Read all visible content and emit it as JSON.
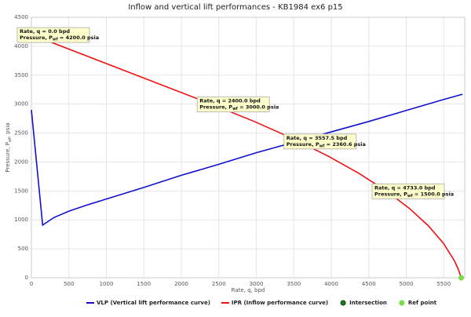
{
  "chart_data": {
    "type": "line",
    "title": "Inflow and vertical lift performances - KB1984 ex6 p15",
    "x_label": "Rate, q, bpd",
    "y_label": [
      "Pressure, P",
      "wf",
      ", psia"
    ],
    "xlim": [
      0,
      5780
    ],
    "ylim": [
      0,
      4500
    ],
    "xticks": [
      0,
      500,
      1000,
      1500,
      2000,
      2500,
      3000,
      3500,
      4000,
      4500,
      5000,
      5500
    ],
    "yticks": [
      0,
      500,
      1000,
      1500,
      2000,
      2500,
      3000,
      3500,
      4000,
      4500
    ],
    "grid": true,
    "series": [
      {
        "name": "VLP (Vertical lift performance curve)",
        "color": "#1010d0",
        "kind": "line",
        "x": [
          0,
          150,
          300,
          500,
          750,
          1000,
          1500,
          2000,
          2500,
          3000,
          3557.5,
          4000,
          4500,
          5000,
          5500,
          5750
        ],
        "values": [
          2900,
          910,
          1040,
          1150,
          1260,
          1360,
          1560,
          1770,
          1960,
          2160,
          2360.6,
          2520,
          2700,
          2890,
          3080,
          3170
        ]
      },
      {
        "name": "IPR (Inflow performance curve)",
        "color": "#ee1111",
        "kind": "line",
        "x": [
          0,
          2400,
          2973.3,
          3493.3,
          3960,
          4373.3,
          4733.3,
          5040,
          5293.3,
          5493.3,
          5640,
          5693.3,
          5733.3
        ],
        "values": [
          4200,
          3000,
          2700,
          2400,
          2100,
          1800,
          1500,
          1200,
          900,
          600,
          300,
          150,
          0
        ]
      },
      {
        "name": "Intersection",
        "color": "#1a7a1a",
        "kind": "point",
        "x": [
          3557.5
        ],
        "values": [
          2360.6
        ],
        "annotations": [
          {
            "rate": "Rate, q = 3557.5 bpd",
            "pressure": [
              "Pressure, P",
              "wf",
              " = 2360.6 psia"
            ]
          }
        ]
      },
      {
        "name": "Ref point",
        "color": "#77dd44",
        "kind": "point",
        "x": [
          0,
          2400,
          4733,
          5733.3
        ],
        "values": [
          4200,
          3000,
          1500,
          0
        ],
        "annotations": [
          {
            "rate": "Rate, q = 0.0 bpd",
            "pressure": [
              "Pressure, P",
              "wf",
              " = 4200.0 psia"
            ]
          },
          {
            "rate": "Rate, q = 2400.0 bpd",
            "pressure": [
              "Pressure, P",
              "wf",
              " = 3000.0 psia"
            ]
          },
          {
            "rate": "Rate, q = 4733.0 bpd",
            "pressure": [
              "Pressure, P",
              "wf",
              " = 1500.0 psia"
            ]
          },
          null
        ]
      }
    ]
  }
}
